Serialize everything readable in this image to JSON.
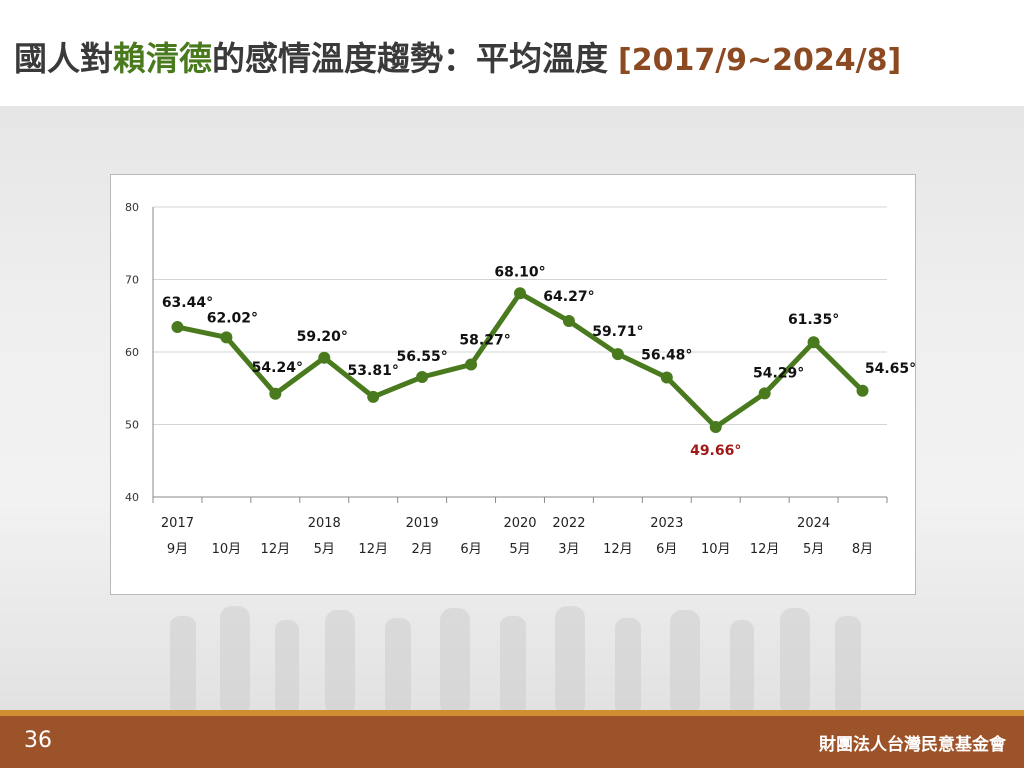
{
  "slide": {
    "title_prefix": "國人對",
    "title_highlight": "賴清德",
    "title_suffix": "的感情溫度趨勢：平均溫度",
    "title_range": "[2017/9~2024/8]",
    "page_number": "36",
    "organization": "財團法人台灣民意基金會"
  },
  "colors": {
    "line": "#4a7a1e",
    "highlight_label": "#a01818",
    "title_highlight": "#4a7a1e",
    "title_range": "#8b4a22",
    "footer": "#9d5329",
    "footer_stripe": "#cf8e32"
  },
  "chart_data": {
    "type": "line",
    "title": "",
    "xlabel": "",
    "ylabel": "",
    "ylim": [
      40,
      80
    ],
    "yticks": [
      40,
      50,
      60,
      70,
      80
    ],
    "grid": true,
    "x_year_labels": [
      "2017",
      "",
      "",
      "2018",
      "",
      "2019",
      "",
      "2020",
      "2022",
      "",
      "2023",
      "",
      "",
      "2024",
      ""
    ],
    "x_month_labels": [
      "9月",
      "10月",
      "12月",
      "5月",
      "12月",
      "2月",
      "6月",
      "5月",
      "3月",
      "12月",
      "6月",
      "10月",
      "12月",
      "5月",
      "8月"
    ],
    "series": [
      {
        "values": [
          63.44,
          62.02,
          54.24,
          59.2,
          53.81,
          56.55,
          58.27,
          68.1,
          64.27,
          59.71,
          56.48,
          49.66,
          54.29,
          61.35,
          54.65
        ],
        "data_labels": [
          "63.44°",
          "62.02°",
          "54.24°",
          "59.20°",
          "53.81°",
          "56.55°",
          "58.27°",
          "68.10°",
          "64.27°",
          "59.71°",
          "56.48°",
          "49.66°",
          "54.29°",
          "61.35°",
          "54.65°"
        ],
        "highlight_index": 11
      }
    ]
  }
}
